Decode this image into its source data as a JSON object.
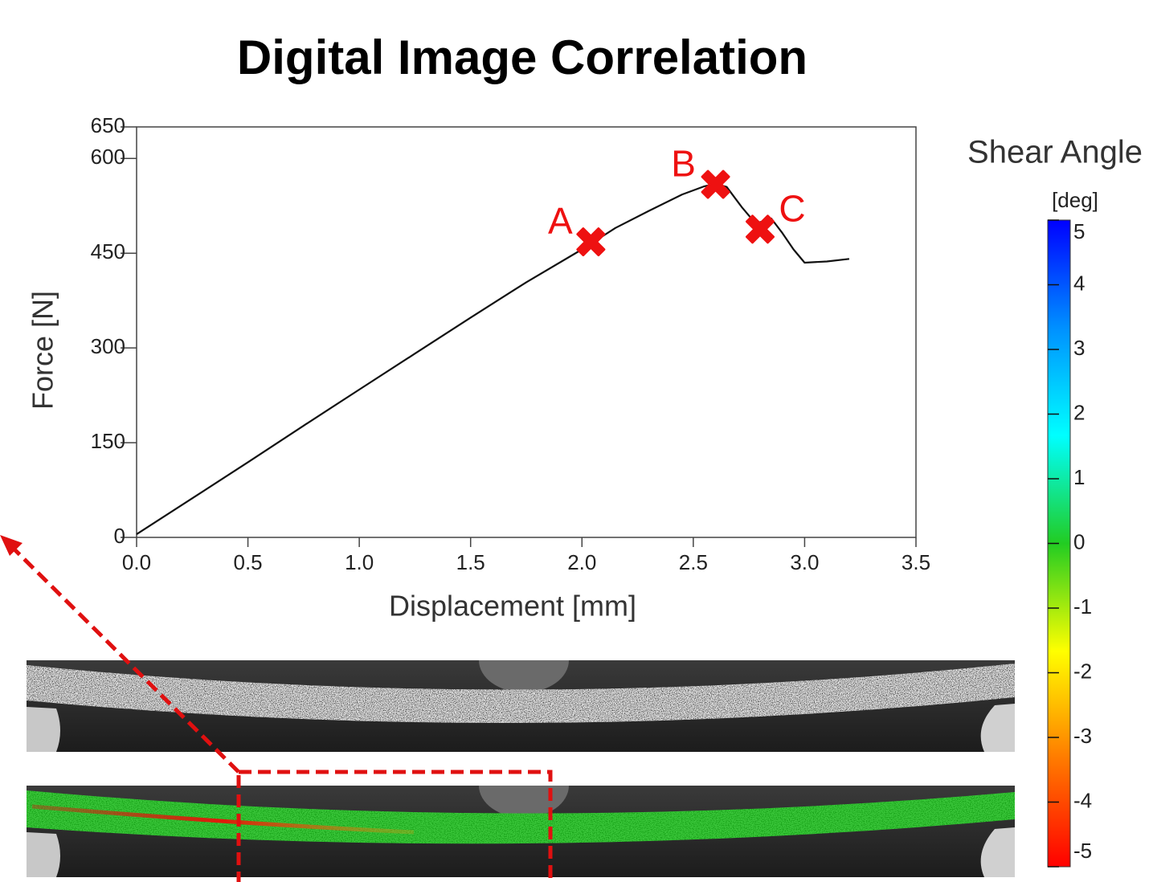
{
  "chart_data": {
    "type": "line",
    "title": "Digital Image Correlation",
    "x_label": "Displacement [mm]",
    "y_label": "Force [N]",
    "x": [
      0.0,
      0.25,
      0.5,
      0.75,
      1.0,
      1.25,
      1.5,
      1.75,
      2.0,
      2.15,
      2.3,
      2.45,
      2.55,
      2.6,
      2.65,
      2.72,
      2.78,
      2.85,
      2.9,
      2.95,
      3.0,
      3.1,
      3.2
    ],
    "values": [
      5,
      62,
      119,
      177,
      234,
      291,
      348,
      404,
      456,
      490,
      517,
      543,
      556,
      560,
      555,
      522,
      497,
      505,
      482,
      456,
      435,
      437,
      441
    ],
    "color": "#111111",
    "xlim": [
      0,
      3.5
    ],
    "xticks": [
      {
        "value": 0,
        "label": "0.0"
      },
      0.5,
      {
        "value": 1,
        "label": "1.0"
      },
      1.5,
      {
        "value": 2,
        "label": "2.0"
      },
      2.5,
      {
        "value": 3,
        "label": "3.0"
      },
      3.5
    ],
    "ylim": [
      0,
      650
    ],
    "yticks": [
      0,
      150,
      300,
      450,
      600,
      650
    ],
    "grid": false,
    "markers": [
      {
        "label": "A",
        "x": 2.04,
        "y": 468
      },
      {
        "label": "B",
        "x": 2.6,
        "y": 559
      },
      {
        "label": "C",
        "x": 2.8,
        "y": 488
      }
    ],
    "marker_color": "#ee1111",
    "colorbar": {
      "title": "Shear Angle",
      "unit": "[deg]",
      "lim": [
        -5,
        5
      ],
      "ticks": [
        5,
        4,
        3,
        2,
        1,
        0,
        -1,
        -2,
        -3,
        -4,
        -5
      ],
      "colors": [
        "#ff0000",
        "#ff7a00",
        "#ffff00",
        "#22cc22",
        "#00ffff",
        "#0090ff",
        "#0000ff"
      ]
    }
  }
}
